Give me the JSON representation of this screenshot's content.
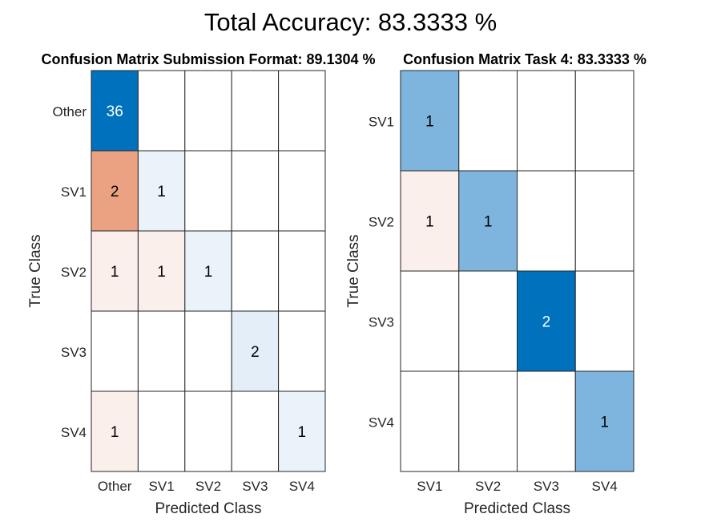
{
  "figure": {
    "suptitle": "Total Accuracy: 83.3333 %"
  },
  "chart_data": [
    {
      "type": "heatmap",
      "title": "Confusion Matrix Submission Format: 89.1304 %",
      "xlabel": "Predicted Class",
      "ylabel": "True Class",
      "row_labels": [
        "Other",
        "SV1",
        "SV2",
        "SV3",
        "SV4"
      ],
      "col_labels": [
        "Other",
        "SV1",
        "SV2",
        "SV3",
        "SV4"
      ],
      "matrix": [
        [
          36,
          0,
          0,
          0,
          0
        ],
        [
          2,
          1,
          0,
          0,
          0
        ],
        [
          1,
          1,
          1,
          0,
          0
        ],
        [
          0,
          0,
          0,
          2,
          0
        ],
        [
          1,
          0,
          0,
          0,
          1
        ]
      ],
      "colors": {
        "diagonal_max": "#0072bd",
        "diagonal_low": "#eaf2fa",
        "off_diagonal_low": "#fbefeb",
        "off_diagonal_high": "#eba283",
        "empty": "#ffffff",
        "grid": "#262626"
      }
    },
    {
      "type": "heatmap",
      "title": "Confusion Matrix Task 4: 83.3333 %",
      "xlabel": "Predicted Class",
      "ylabel": "True Class",
      "row_labels": [
        "SV1",
        "SV2",
        "SV3",
        "SV4"
      ],
      "col_labels": [
        "SV1",
        "SV2",
        "SV3",
        "SV4"
      ],
      "matrix": [
        [
          1,
          0,
          0,
          0
        ],
        [
          1,
          1,
          0,
          0
        ],
        [
          0,
          0,
          2,
          0
        ],
        [
          0,
          0,
          0,
          1
        ]
      ],
      "colors": {
        "diagonal_max": "#0072bd",
        "diagonal_low": "#7eb5de",
        "off_diagonal_low": "#fbefeb",
        "off_diagonal_high": "#eba283",
        "empty": "#ffffff",
        "grid": "#262626"
      }
    }
  ]
}
